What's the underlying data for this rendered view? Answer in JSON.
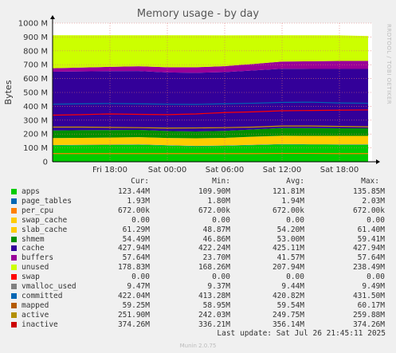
{
  "chart_data": {
    "type": "area",
    "title": "Memory usage - by day",
    "ylabel": "Bytes",
    "ylim": [
      0,
      1000
    ],
    "y_unit": "M",
    "yticks": [
      "0",
      "100 M",
      "200 M",
      "300 M",
      "400 M",
      "500 M",
      "600 M",
      "700 M",
      "800 M",
      "900 M",
      "1000 M"
    ],
    "xticks": [
      "Fri 18:00",
      "Sat 00:00",
      "Sat 06:00",
      "Sat 12:00",
      "Sat 18:00"
    ],
    "x": [
      "Fri 12:00",
      "Fri 15:00",
      "Fri 18:00",
      "Fri 21:00",
      "Sat 00:00",
      "Sat 03:00",
      "Sat 06:00",
      "Sat 09:00",
      "Sat 12:00",
      "Sat 15:00",
      "Sat 18:00",
      "Sat 21:45"
    ],
    "stacked_series": [
      {
        "name": "apps",
        "color": "#00cc00",
        "values": [
          118,
          120,
          121,
          123,
          117,
          112,
          115,
          120,
          125,
          124,
          123,
          123
        ]
      },
      {
        "name": "page_tables",
        "color": "#0066b3",
        "values": [
          2,
          2,
          2,
          2,
          2,
          2,
          2,
          2,
          2,
          2,
          2,
          2
        ]
      },
      {
        "name": "per_cpu",
        "color": "#ff8000",
        "values": [
          0.7,
          0.7,
          0.7,
          0.7,
          0.7,
          0.7,
          0.7,
          0.7,
          0.7,
          0.7,
          0.7,
          0.7
        ]
      },
      {
        "name": "swap_cache",
        "color": "#ffcc00",
        "values": [
          0,
          0,
          0,
          0,
          0,
          0,
          0,
          0,
          0,
          0,
          0,
          0
        ]
      },
      {
        "name": "slab_cache",
        "color": "#ffcc00",
        "values": [
          50,
          50,
          51,
          52,
          52,
          55,
          55,
          58,
          60,
          60,
          61,
          61
        ]
      },
      {
        "name": "shmem",
        "color": "#008f00",
        "values": [
          55,
          55,
          54,
          52,
          50,
          49,
          50,
          52,
          56,
          56,
          55,
          55
        ]
      },
      {
        "name": "cache",
        "color": "#330099",
        "values": [
          424,
          424,
          425,
          425,
          423,
          423,
          424,
          426,
          427,
          427,
          428,
          428
        ]
      },
      {
        "name": "buffers",
        "color": "#990099",
        "values": [
          25,
          28,
          31,
          34,
          37,
          40,
          43,
          47,
          52,
          55,
          57,
          58
        ]
      },
      {
        "name": "unused",
        "color": "#ccff00",
        "values": [
          238,
          233,
          228,
          224,
          231,
          231,
          222,
          207,
          190,
          188,
          185,
          179
        ]
      }
    ],
    "line_series": [
      {
        "name": "committed",
        "color": "#0066b3",
        "values": [
          415,
          418,
          420,
          418,
          415,
          414,
          418,
          422,
          428,
          430,
          424,
          422
        ]
      },
      {
        "name": "inactive",
        "color": "#ff0000",
        "values": [
          336,
          340,
          345,
          342,
          340,
          345,
          355,
          360,
          368,
          370,
          372,
          374
        ]
      },
      {
        "name": "active",
        "color": "#cc9900",
        "values": [
          250,
          250,
          248,
          246,
          243,
          244,
          246,
          250,
          258,
          258,
          255,
          252
        ]
      },
      {
        "name": "mapped",
        "color": "#ff8000",
        "values": [
          59,
          59,
          59,
          59,
          59,
          59,
          59,
          59,
          60,
          60,
          59,
          59
        ]
      }
    ]
  },
  "legend": {
    "headers": {
      "cur": "Cur:",
      "min": "Min:",
      "avg": "Avg:",
      "max": "Max:"
    },
    "rows": [
      {
        "name": "apps",
        "color": "#00cc00",
        "cur": "123.44M",
        "min": "109.90M",
        "avg": "121.81M",
        "max": "135.85M"
      },
      {
        "name": "page_tables",
        "color": "#0066b3",
        "cur": "1.93M",
        "min": "1.80M",
        "avg": "1.94M",
        "max": "2.03M"
      },
      {
        "name": "per_cpu",
        "color": "#ff8000",
        "cur": "672.00k",
        "min": "672.00k",
        "avg": "672.00k",
        "max": "672.00k"
      },
      {
        "name": "swap_cache",
        "color": "#ffcc00",
        "cur": "0.00",
        "min": "0.00",
        "avg": "0.00",
        "max": "0.00"
      },
      {
        "name": "slab_cache",
        "color": "#ffcc00",
        "cur": "61.29M",
        "min": "48.87M",
        "avg": "54.20M",
        "max": "61.40M"
      },
      {
        "name": "shmem",
        "color": "#008f00",
        "cur": "54.49M",
        "min": "46.86M",
        "avg": "53.00M",
        "max": "59.41M"
      },
      {
        "name": "cache",
        "color": "#330099",
        "cur": "427.94M",
        "min": "422.24M",
        "avg": "425.11M",
        "max": "427.94M"
      },
      {
        "name": "buffers",
        "color": "#990099",
        "cur": "57.64M",
        "min": "23.70M",
        "avg": "41.57M",
        "max": "57.64M"
      },
      {
        "name": "unused",
        "color": "#ccff00",
        "cur": "178.83M",
        "min": "168.26M",
        "avg": "207.94M",
        "max": "238.49M"
      },
      {
        "name": "swap",
        "color": "#ff0000",
        "cur": "0.00",
        "min": "0.00",
        "avg": "0.00",
        "max": "0.00"
      },
      {
        "name": "vmalloc_used",
        "color": "#808080",
        "cur": "9.47M",
        "min": "9.37M",
        "avg": "9.44M",
        "max": "9.49M"
      },
      {
        "name": "committed",
        "color": "#0066b3",
        "cur": "422.04M",
        "min": "413.28M",
        "avg": "420.82M",
        "max": "431.50M"
      },
      {
        "name": "mapped",
        "color": "#b35a00",
        "cur": "59.25M",
        "min": "58.95M",
        "avg": "59.54M",
        "max": "60.17M"
      },
      {
        "name": "active",
        "color": "#b38f00",
        "cur": "251.90M",
        "min": "242.03M",
        "avg": "249.75M",
        "max": "259.88M"
      },
      {
        "name": "inactive",
        "color": "#cc0000",
        "cur": "374.26M",
        "min": "336.21M",
        "avg": "356.14M",
        "max": "374.26M"
      }
    ]
  },
  "footer": {
    "last_update": "Last update: Sat Jul 26 21:45:11 2025",
    "munin": "Munin 2.0.75"
  },
  "side_label": "RRDTOOL / TOBI OETIKER"
}
